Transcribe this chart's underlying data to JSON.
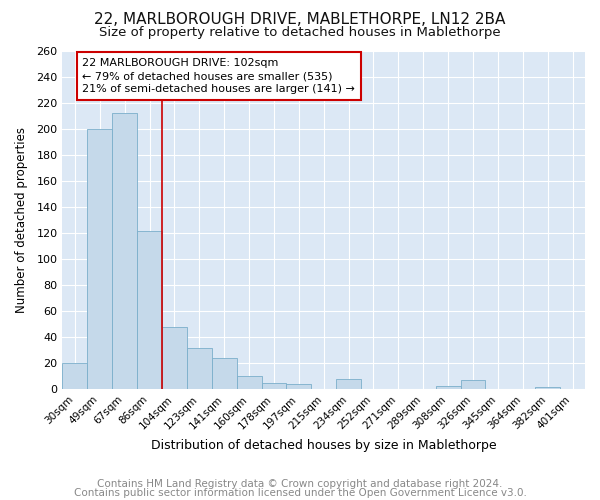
{
  "title": "22, MARLBOROUGH DRIVE, MABLETHORPE, LN12 2BA",
  "subtitle": "Size of property relative to detached houses in Mablethorpe",
  "xlabel": "Distribution of detached houses by size in Mablethorpe",
  "ylabel": "Number of detached properties",
  "bar_labels": [
    "30sqm",
    "49sqm",
    "67sqm",
    "86sqm",
    "104sqm",
    "123sqm",
    "141sqm",
    "160sqm",
    "178sqm",
    "197sqm",
    "215sqm",
    "234sqm",
    "252sqm",
    "271sqm",
    "289sqm",
    "308sqm",
    "326sqm",
    "345sqm",
    "364sqm",
    "382sqm",
    "401sqm"
  ],
  "bar_values": [
    20,
    200,
    213,
    122,
    48,
    32,
    24,
    10,
    5,
    4,
    0,
    8,
    0,
    0,
    0,
    3,
    7,
    0,
    0,
    2,
    0
  ],
  "bar_color": "#c5d9ea",
  "bar_edge_color": "#7aaecb",
  "vline_x_idx": 3.5,
  "vline_color": "#cc0000",
  "annotation_line1": "22 MARLBOROUGH DRIVE: 102sqm",
  "annotation_line2": "← 79% of detached houses are smaller (535)",
  "annotation_line3": "21% of semi-detached houses are larger (141) →",
  "annotation_box_facecolor": "white",
  "annotation_box_edgecolor": "#cc0000",
  "ylim": [
    0,
    260
  ],
  "yticks": [
    0,
    20,
    40,
    60,
    80,
    100,
    120,
    140,
    160,
    180,
    200,
    220,
    240,
    260
  ],
  "footer_line1": "Contains HM Land Registry data © Crown copyright and database right 2024.",
  "footer_line2": "Contains public sector information licensed under the Open Government Licence v3.0.",
  "bg_color": "#ffffff",
  "plot_bg_color": "#dce8f5",
  "grid_color": "#ffffff",
  "title_fontsize": 11,
  "subtitle_fontsize": 9.5,
  "footer_fontsize": 7.5,
  "xlabel_fontsize": 9,
  "ylabel_fontsize": 8.5
}
